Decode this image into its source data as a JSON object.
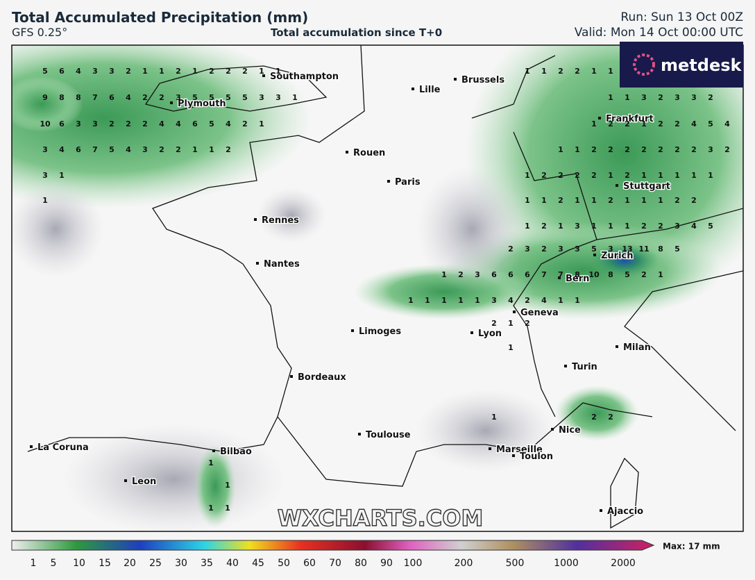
{
  "header": {
    "title": "Total Accumulated Precipitation (mm)",
    "model": "GFS 0.25°",
    "subtitle": "Total accumulation since T+0",
    "run": "Run: Sun 13 Oct 00Z",
    "valid": "Valid: Mon 14 Oct 00:00 UTC"
  },
  "logo": "metdesk",
  "watermark": "WXCHARTS.COM",
  "max_label": "Max: 17 mm",
  "cities": [
    "Southampton",
    "Plymouth",
    "Lille",
    "Brussels",
    "Frankfurt",
    "Rouen",
    "Paris",
    "Stuttgart",
    "Rennes",
    "Nantes",
    "Zurich",
    "Bern",
    "Geneva",
    "Limoges",
    "Lyon",
    "Milan",
    "Turin",
    "Bordeaux",
    "Toulouse",
    "Nice",
    "Marseille",
    "Toulon",
    "La Coruna",
    "Bilbao",
    "Leon",
    "Ajaccio"
  ],
  "grid_values": [
    [
      5,
      6,
      4,
      3,
      3,
      2,
      1,
      1,
      2,
      1,
      2,
      2,
      2,
      1,
      1
    ],
    [
      9,
      8,
      8,
      7,
      6,
      4,
      2,
      2,
      3,
      5,
      5,
      5,
      5,
      3,
      3,
      1
    ],
    [
      10,
      6,
      3,
      3,
      2,
      2,
      2,
      4,
      4,
      6,
      5,
      4,
      2,
      1
    ],
    [
      3,
      4,
      6,
      7,
      5,
      4,
      3,
      2,
      2,
      1,
      1,
      2
    ],
    [
      3,
      1
    ],
    [
      1
    ],
    [
      1,
      1,
      2,
      2,
      1,
      1
    ],
    [
      1,
      1,
      3,
      2,
      3,
      3,
      2
    ],
    [
      1,
      2,
      2,
      1,
      2,
      2,
      4,
      5,
      4
    ],
    [
      1,
      1,
      2,
      2,
      2,
      2,
      2,
      2,
      2,
      3,
      2
    ],
    [
      1,
      2,
      2,
      2,
      2,
      1,
      2,
      1,
      1,
      1,
      1,
      1
    ],
    [
      1,
      1,
      2,
      1,
      1,
      2,
      1,
      1,
      1,
      2,
      2
    ],
    [
      1,
      2,
      1,
      3,
      1,
      1,
      1,
      2,
      2,
      3,
      4,
      5
    ],
    [
      2,
      3,
      2,
      3,
      3,
      5,
      3,
      13,
      11,
      8,
      5
    ],
    [
      1,
      2,
      3,
      6,
      6,
      6,
      7,
      7,
      8,
      10,
      8,
      5,
      2,
      1
    ],
    [
      1,
      1,
      1,
      1,
      1,
      3,
      4,
      2,
      4,
      1,
      1
    ],
    [
      2,
      1,
      2
    ],
    [
      1
    ],
    [
      1
    ],
    [
      2,
      2
    ],
    [
      1
    ],
    [
      1
    ],
    [
      1,
      1
    ]
  ],
  "colorbar_ticks": [
    1,
    5,
    10,
    15,
    20,
    25,
    30,
    35,
    40,
    45,
    50,
    60,
    70,
    80,
    90,
    100,
    200,
    500,
    1000,
    2000
  ]
}
